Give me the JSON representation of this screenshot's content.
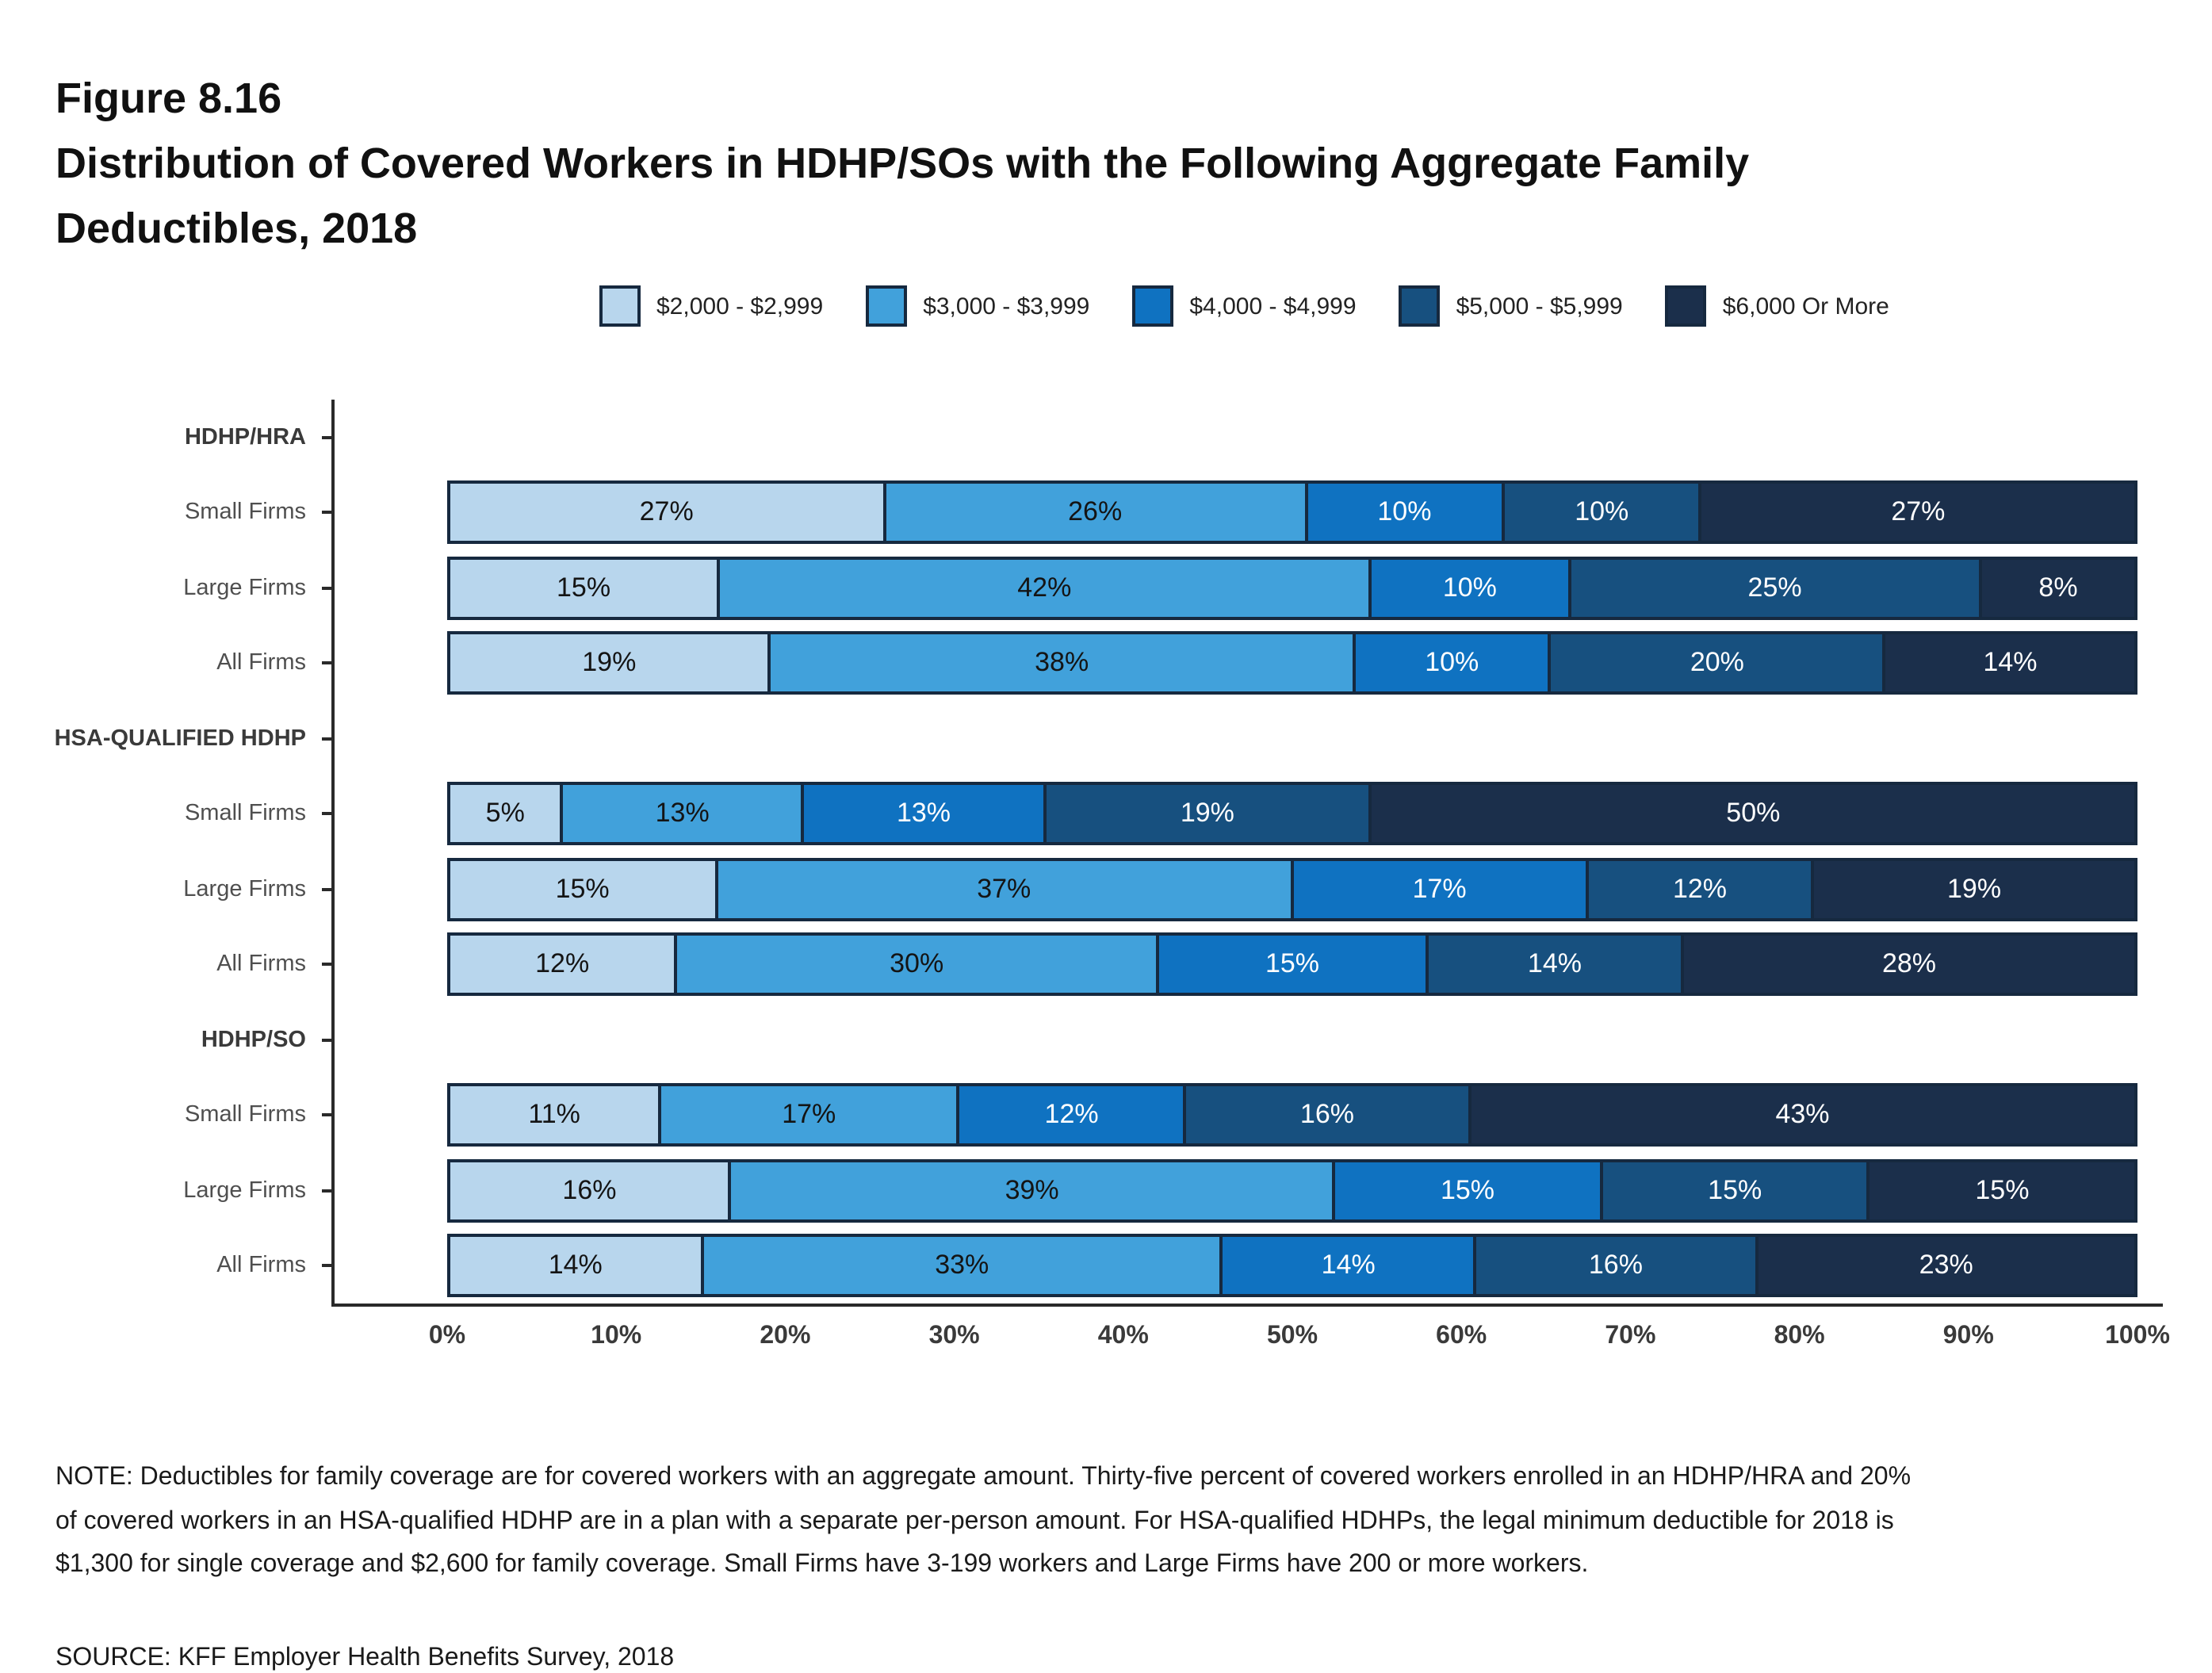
{
  "figure": {
    "label": "Figure 8.16",
    "title_lines": [
      "Distribution of Covered Workers in HDHP/SOs with the Following Aggregate Family",
      "Deductibles, 2018"
    ]
  },
  "legend": [
    {
      "label": "$2,000 - $2,999",
      "color": "#b8d6ed",
      "text_color": "#141414"
    },
    {
      "label": "$3,000 - $3,999",
      "color": "#41a1db",
      "text_color": "#141414"
    },
    {
      "label": "$4,000 - $4,999",
      "color": "#0f72c1",
      "text_color": "#ffffff"
    },
    {
      "label": "$5,000 - $5,999",
      "color": "#17507f",
      "text_color": "#ffffff"
    },
    {
      "label": "$6,000 Or More",
      "color": "#1b2f4b",
      "text_color": "#ffffff"
    }
  ],
  "chart_data": {
    "type": "bar",
    "orientation": "horizontal",
    "stacked": true,
    "title": "Figure 8.16 — Distribution of Covered Workers in HDHP/SOs with the Following Aggregate Family Deductibles, 2018",
    "legend_position": "top",
    "series_names": [
      "$2,000 - $2,999",
      "$3,000 - $3,999",
      "$4,000 - $4,999",
      "$5,000 - $5,999",
      "$6,000 Or More"
    ],
    "x_axis": {
      "range": [
        0,
        100
      ],
      "ticks": [
        "0%",
        "10%",
        "20%",
        "30%",
        "40%",
        "50%",
        "60%",
        "70%",
        "80%",
        "90%",
        "100%"
      ]
    },
    "groups": [
      {
        "name": "HDHP/HRA",
        "rows": [
          {
            "label": "Small Firms",
            "values": [
              27,
              26,
              10,
              10,
              27
            ]
          },
          {
            "label": "Large Firms",
            "values": [
              15,
              42,
              10,
              25,
              8
            ]
          },
          {
            "label": "All Firms",
            "values": [
              19,
              38,
              10,
              20,
              14
            ]
          }
        ]
      },
      {
        "name": "HSA-QUALIFIED HDHP",
        "rows": [
          {
            "label": "Small Firms",
            "values": [
              5,
              13,
              13,
              19,
              50
            ]
          },
          {
            "label": "Large Firms",
            "values": [
              15,
              37,
              17,
              12,
              19
            ]
          },
          {
            "label": "All Firms",
            "values": [
              12,
              30,
              15,
              14,
              28
            ]
          }
        ]
      },
      {
        "name": "HDHP/SO",
        "rows": [
          {
            "label": "Small Firms",
            "values": [
              11,
              17,
              12,
              16,
              43
            ]
          },
          {
            "label": "Large Firms",
            "values": [
              16,
              39,
              15,
              15,
              15
            ]
          },
          {
            "label": "All Firms",
            "values": [
              14,
              33,
              14,
              16,
              23
            ]
          }
        ]
      }
    ]
  },
  "note": "NOTE: Deductibles for family coverage are for covered workers with an aggregate amount. Thirty-five percent of covered workers enrolled in an HDHP/HRA and 20% of covered workers in an HSA-qualified HDHP are in a plan with a separate per-person amount. For HSA-qualified HDHPs, the legal minimum deductible for 2018 is $1,300 for single coverage and $2,600 for family coverage. Small Firms have 3-199 workers and Large Firms have 200 or more workers.",
  "source": "SOURCE: KFF Employer Health Benefits Survey, 2018"
}
